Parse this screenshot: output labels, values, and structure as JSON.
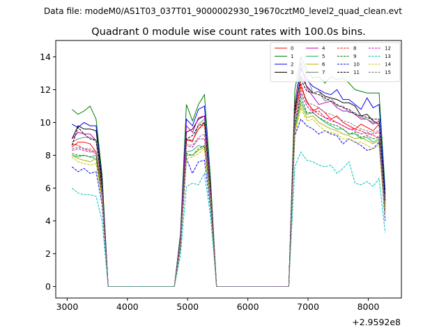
{
  "figure": {
    "suptitle": "Data file: modeM0/AS1T03_037T01_9000002930_19670cztM0_level2_quad_clean.evt"
  },
  "chart_data": {
    "type": "line",
    "title": "Quadrant 0 module wise count rates with 100.0s bins.",
    "xlabel": "",
    "ylabel": "",
    "x_offset_label": "+2.9592e8",
    "xlim": [
      2810,
      8550
    ],
    "ylim": [
      -0.7,
      15.0
    ],
    "xticks": [
      3000,
      4000,
      5000,
      6000,
      7000,
      8000
    ],
    "xtick_labels": [
      "3000",
      "4000",
      "5000",
      "6000",
      "7000",
      "8000"
    ],
    "yticks": [
      0,
      2,
      4,
      6,
      8,
      10,
      12,
      14
    ],
    "ytick_labels": [
      "0",
      "2",
      "4",
      "6",
      "8",
      "10",
      "12",
      "14"
    ],
    "legend_position": "top-right",
    "x": [
      3080,
      3180,
      3280,
      3380,
      3480,
      3580,
      3680,
      3780,
      3880,
      3980,
      4080,
      4180,
      4280,
      4380,
      4480,
      4580,
      4680,
      4780,
      4880,
      4980,
      5080,
      5180,
      5280,
      5380,
      5480,
      5580,
      5680,
      5780,
      5880,
      5980,
      6080,
      6180,
      6280,
      6380,
      6480,
      6580,
      6680,
      6780,
      6880,
      6980,
      7080,
      7180,
      7280,
      7380,
      7480,
      7580,
      7680,
      7780,
      7880,
      7980,
      8080,
      8180,
      8280
    ],
    "series": [
      {
        "name": "0",
        "color": "#ff0000",
        "dashed": false,
        "values": [
          8.5,
          8.8,
          8.8,
          8.7,
          8.2,
          6.0,
          0,
          0,
          0,
          0,
          0,
          0,
          0,
          0,
          0,
          0,
          0,
          0,
          2.8,
          8.9,
          8.9,
          9.6,
          10.0,
          5.8,
          0,
          0,
          0,
          0,
          0,
          0,
          0,
          0,
          0,
          0,
          0,
          0,
          0,
          10.5,
          12.2,
          11.3,
          10.7,
          10.9,
          10.6,
          10.2,
          10.4,
          10.0,
          9.8,
          9.6,
          9.9,
          9.7,
          9.5,
          9.9,
          5.0
        ]
      },
      {
        "name": "1",
        "color": "#008000",
        "dashed": false,
        "values": [
          10.8,
          10.5,
          10.7,
          11.0,
          10.2,
          6.8,
          0,
          0,
          0,
          0,
          0,
          0,
          0,
          0,
          0,
          0,
          0,
          0,
          3.2,
          11.1,
          10.1,
          11.1,
          11.7,
          6.6,
          0,
          0,
          0,
          0,
          0,
          0,
          0,
          0,
          0,
          0,
          0,
          0,
          0,
          12.0,
          14.0,
          13.2,
          12.7,
          12.8,
          12.4,
          12.8,
          12.6,
          12.7,
          12.4,
          12.0,
          11.9,
          11.8,
          11.8,
          11.8,
          5.9
        ]
      },
      {
        "name": "2",
        "color": "#0000ff",
        "dashed": false,
        "values": [
          9.9,
          9.7,
          10.0,
          9.8,
          9.8,
          6.5,
          0,
          0,
          0,
          0,
          0,
          0,
          0,
          0,
          0,
          0,
          0,
          0,
          3.0,
          10.2,
          9.8,
          10.8,
          11.0,
          6.1,
          0,
          0,
          0,
          0,
          0,
          0,
          0,
          0,
          0,
          0,
          0,
          0,
          0,
          11.0,
          13.3,
          12.6,
          12.2,
          12.0,
          11.8,
          11.7,
          12.0,
          11.4,
          11.4,
          11.1,
          10.8,
          11.5,
          10.9,
          11.1,
          5.6
        ]
      },
      {
        "name": "3",
        "color": "#000000",
        "dashed": false,
        "values": [
          9.0,
          9.8,
          9.6,
          9.6,
          9.5,
          6.4,
          0,
          0,
          0,
          0,
          0,
          0,
          0,
          0,
          0,
          0,
          0,
          0,
          2.9,
          9.4,
          9.6,
          10.2,
          10.4,
          5.9,
          0,
          0,
          0,
          0,
          0,
          0,
          0,
          0,
          0,
          0,
          0,
          0,
          0,
          10.7,
          12.8,
          12.2,
          11.8,
          11.9,
          11.6,
          11.5,
          11.4,
          11.2,
          11.2,
          11.0,
          10.4,
          10.5,
          10.1,
          9.9,
          5.3
        ]
      },
      {
        "name": "4",
        "color": "#c000c0",
        "dashed": false,
        "values": [
          9.0,
          9.4,
          9.3,
          9.3,
          8.9,
          6.2,
          0,
          0,
          0,
          0,
          0,
          0,
          0,
          0,
          0,
          0,
          0,
          0,
          2.9,
          9.8,
          9.4,
          10.3,
          10.4,
          6.0,
          0,
          0,
          0,
          0,
          0,
          0,
          0,
          0,
          0,
          0,
          0,
          0,
          0,
          11.2,
          13.6,
          12.1,
          11.6,
          11.1,
          11.2,
          11.3,
          10.9,
          10.7,
          10.7,
          10.5,
          10.2,
          10.2,
          9.9,
          10.1,
          5.1
        ]
      },
      {
        "name": "5",
        "color": "#20b070",
        "dashed": false,
        "values": [
          8.0,
          7.9,
          8.0,
          7.9,
          8.0,
          5.6,
          0,
          0,
          0,
          0,
          0,
          0,
          0,
          0,
          0,
          0,
          0,
          0,
          2.6,
          8.2,
          8.3,
          8.6,
          8.5,
          5.3,
          0,
          0,
          0,
          0,
          0,
          0,
          0,
          0,
          0,
          0,
          0,
          0,
          0,
          9.7,
          11.3,
          10.5,
          10.6,
          10.3,
          10.0,
          9.8,
          9.6,
          9.6,
          9.3,
          9.3,
          9.0,
          9.1,
          8.8,
          9.0,
          4.5
        ]
      },
      {
        "name": "6",
        "color": "#b0b000",
        "dashed": false,
        "values": [
          8.0,
          7.8,
          7.7,
          7.6,
          7.8,
          5.5,
          0,
          0,
          0,
          0,
          0,
          0,
          0,
          0,
          0,
          0,
          0,
          0,
          2.5,
          8.0,
          8.0,
          8.3,
          8.5,
          5.2,
          0,
          0,
          0,
          0,
          0,
          0,
          0,
          0,
          0,
          0,
          0,
          0,
          0,
          9.5,
          11.1,
          10.3,
          10.4,
          10.0,
          9.8,
          9.6,
          9.5,
          9.3,
          9.2,
          9.0,
          9.1,
          8.9,
          8.7,
          8.9,
          4.4
        ]
      },
      {
        "name": "7",
        "color": "#808080",
        "dashed": false,
        "values": [
          8.8,
          9.0,
          9.1,
          9.1,
          8.9,
          6.2,
          0,
          0,
          0,
          0,
          0,
          0,
          0,
          0,
          0,
          0,
          0,
          0,
          2.8,
          9.0,
          8.8,
          9.9,
          10.2,
          5.9,
          0,
          0,
          0,
          0,
          0,
          0,
          0,
          0,
          0,
          0,
          0,
          0,
          0,
          11.0,
          13.7,
          12.9,
          11.8,
          11.9,
          11.3,
          11.5,
          11.0,
          11.0,
          10.6,
          10.6,
          10.3,
          10.2,
          10.0,
          9.9,
          5.0
        ]
      },
      {
        "name": "8",
        "color": "#ff0000",
        "dashed": true,
        "values": [
          8.7,
          8.6,
          8.4,
          8.3,
          8.1,
          5.8,
          0,
          0,
          0,
          0,
          0,
          0,
          0,
          0,
          0,
          0,
          0,
          0,
          2.7,
          9.0,
          8.9,
          9.6,
          9.9,
          5.8,
          0,
          0,
          0,
          0,
          0,
          0,
          0,
          0,
          0,
          0,
          0,
          0,
          0,
          10.3,
          12.4,
          11.2,
          10.8,
          10.5,
          10.3,
          10.2,
          10.0,
          9.8,
          9.6,
          9.6,
          9.5,
          9.3,
          9.3,
          9.4,
          4.9
        ]
      },
      {
        "name": "9",
        "color": "#008000",
        "dashed": true,
        "values": [
          8.1,
          8.0,
          8.0,
          7.9,
          7.8,
          5.4,
          0,
          0,
          0,
          0,
          0,
          0,
          0,
          0,
          0,
          0,
          0,
          0,
          2.5,
          8.1,
          8.0,
          8.4,
          8.6,
          5.2,
          0,
          0,
          0,
          0,
          0,
          0,
          0,
          0,
          0,
          0,
          0,
          0,
          0,
          9.8,
          11.6,
          10.6,
          10.6,
          10.3,
          10.1,
          9.9,
          9.8,
          9.6,
          9.3,
          9.4,
          9.1,
          9.2,
          9.0,
          9.1,
          4.6
        ]
      },
      {
        "name": "10",
        "color": "#0000ff",
        "dashed": true,
        "values": [
          7.3,
          7.0,
          7.2,
          6.9,
          7.0,
          5.0,
          0,
          0,
          0,
          0,
          0,
          0,
          0,
          0,
          0,
          0,
          0,
          0,
          2.3,
          7.8,
          6.9,
          7.6,
          7.7,
          4.8,
          0,
          0,
          0,
          0,
          0,
          0,
          0,
          0,
          0,
          0,
          0,
          0,
          0,
          9.2,
          10.2,
          9.8,
          9.6,
          9.3,
          9.5,
          9.3,
          9.2,
          8.7,
          9.0,
          8.8,
          8.6,
          8.3,
          8.4,
          8.8,
          4.0
        ]
      },
      {
        "name": "11",
        "color": "#000000",
        "dashed": true,
        "values": [
          8.6,
          9.7,
          9.3,
          9.0,
          8.9,
          6.1,
          0,
          0,
          0,
          0,
          0,
          0,
          0,
          0,
          0,
          0,
          0,
          0,
          2.7,
          9.0,
          9.2,
          9.8,
          10.0,
          5.8,
          0,
          0,
          0,
          0,
          0,
          0,
          0,
          0,
          0,
          0,
          0,
          0,
          0,
          10.9,
          12.6,
          11.9,
          11.8,
          11.7,
          11.5,
          11.3,
          11.1,
          10.9,
          10.8,
          10.5,
          10.4,
          10.3,
          10.2,
          10.2,
          5.2
        ]
      },
      {
        "name": "12",
        "color": "#c000c0",
        "dashed": true,
        "values": [
          8.3,
          8.4,
          8.3,
          8.2,
          8.2,
          5.7,
          0,
          0,
          0,
          0,
          0,
          0,
          0,
          0,
          0,
          0,
          0,
          0,
          2.6,
          8.6,
          8.5,
          9.0,
          9.0,
          5.5,
          0,
          0,
          0,
          0,
          0,
          0,
          0,
          0,
          0,
          0,
          0,
          0,
          0,
          10.0,
          11.8,
          11.0,
          10.6,
          10.7,
          10.3,
          10.1,
          10.0,
          9.8,
          9.6,
          9.5,
          9.3,
          9.4,
          9.2,
          9.1,
          4.7
        ]
      },
      {
        "name": "13",
        "color": "#00bfbf",
        "dashed": true,
        "values": [
          6.0,
          5.7,
          5.6,
          5.6,
          5.5,
          4.0,
          0,
          0,
          0,
          0,
          0,
          0,
          0,
          0,
          0,
          0,
          0,
          0,
          1.9,
          6.1,
          6.3,
          6.2,
          6.9,
          4.3,
          0,
          0,
          0,
          0,
          0,
          0,
          0,
          0,
          0,
          0,
          0,
          0,
          0,
          7.3,
          8.2,
          7.7,
          7.6,
          7.4,
          7.3,
          7.4,
          6.9,
          7.2,
          7.6,
          6.3,
          6.2,
          6.4,
          6.1,
          6.6,
          3.3
        ]
      },
      {
        "name": "14",
        "color": "#c0c000",
        "dashed": true,
        "values": [
          7.9,
          7.6,
          7.5,
          7.4,
          7.5,
          5.3,
          0,
          0,
          0,
          0,
          0,
          0,
          0,
          0,
          0,
          0,
          0,
          0,
          2.4,
          7.8,
          7.9,
          8.1,
          8.4,
          5.1,
          0,
          0,
          0,
          0,
          0,
          0,
          0,
          0,
          0,
          0,
          0,
          0,
          0,
          9.3,
          10.9,
          10.1,
          10.2,
          9.8,
          9.5,
          9.4,
          9.3,
          9.0,
          9.0,
          8.8,
          8.8,
          8.6,
          8.4,
          8.6,
          4.3
        ]
      },
      {
        "name": "15",
        "color": "#808080",
        "dashed": true,
        "values": [
          8.4,
          8.5,
          8.4,
          8.4,
          8.2,
          5.8,
          0,
          0,
          0,
          0,
          0,
          0,
          0,
          0,
          0,
          0,
          0,
          0,
          2.7,
          8.7,
          8.6,
          9.1,
          9.3,
          5.6,
          0,
          0,
          0,
          0,
          0,
          0,
          0,
          0,
          0,
          0,
          0,
          0,
          0,
          10.3,
          12.0,
          11.2,
          11.1,
          10.9,
          10.6,
          10.5,
          10.3,
          10.1,
          10.0,
          9.8,
          9.6,
          9.5,
          9.4,
          9.5,
          4.8
        ]
      }
    ]
  }
}
